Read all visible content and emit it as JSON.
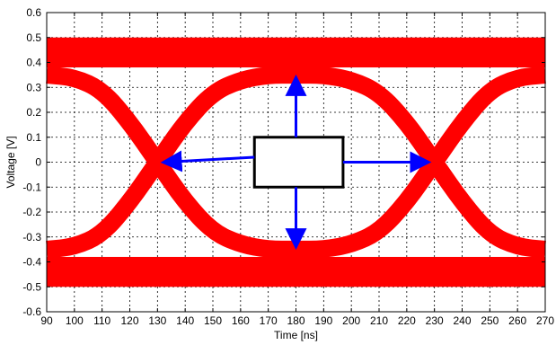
{
  "chart_data": {
    "type": "line",
    "title": "",
    "xlabel": "Time [ns]",
    "ylabel": "Voltage [V]",
    "xlim": [
      90,
      270
    ],
    "ylim": [
      -0.6,
      0.6
    ],
    "xticks": [
      90,
      100,
      110,
      120,
      130,
      140,
      150,
      160,
      170,
      180,
      190,
      200,
      210,
      220,
      230,
      240,
      250,
      260,
      270
    ],
    "yticks": [
      -0.6,
      -0.5,
      -0.4,
      -0.3,
      -0.2,
      -0.1,
      0,
      0.1,
      0.2,
      0.3,
      0.4,
      0.5,
      0.6
    ],
    "yticklabels": [
      "-0.6",
      "-0.5",
      "-0.4",
      "-0.3",
      "-0.2",
      "-0.1",
      "0",
      "0.1",
      "0.2",
      "0.3",
      "0.4",
      "0.5",
      "0.6"
    ],
    "grid": true,
    "grid_style": "dashed",
    "eye_diagram": {
      "color": "#ff0000",
      "high_level_band": [
        0.38,
        0.5
      ],
      "low_level_band": [
        -0.5,
        -0.38
      ],
      "crossing_points": [
        {
          "x": 130,
          "y": 0
        },
        {
          "x": 230,
          "y": 0
        }
      ],
      "trace_bundle_width": 0.07,
      "series": [
        {
          "x": [
            90,
            100,
            110,
            120,
            130,
            140,
            150,
            160,
            170,
            180,
            190,
            200,
            210,
            220,
            230,
            240,
            250,
            260,
            270
          ],
          "y": [
            0.35,
            0.34,
            0.29,
            0.16,
            0.0,
            -0.16,
            -0.28,
            -0.33,
            -0.35,
            -0.35,
            -0.35,
            -0.33,
            -0.28,
            -0.16,
            0.0,
            0.16,
            0.29,
            0.34,
            0.35
          ]
        },
        {
          "x": [
            90,
            100,
            110,
            120,
            130,
            140,
            150,
            160,
            170,
            180,
            190,
            200,
            210,
            220,
            230,
            240,
            250,
            260,
            270
          ],
          "y": [
            -0.35,
            -0.34,
            -0.29,
            -0.16,
            0.0,
            0.16,
            0.28,
            0.33,
            0.35,
            0.35,
            0.35,
            0.33,
            0.28,
            0.16,
            0.0,
            -0.16,
            -0.29,
            -0.34,
            -0.35
          ]
        }
      ]
    },
    "annotations": {
      "eye_mask_box": {
        "x": [
          165,
          197
        ],
        "y": [
          -0.1,
          0.1
        ],
        "color": "#000000"
      },
      "arrows": [
        {
          "from": [
            180,
            0.1
          ],
          "to": [
            180,
            0.33
          ],
          "color": "#0000ff"
        },
        {
          "from": [
            180,
            -0.1
          ],
          "to": [
            180,
            -0.33
          ],
          "color": "#0000ff"
        },
        {
          "from": [
            165,
            0.02
          ],
          "to": [
            133,
            0.0
          ],
          "color": "#0000ff"
        },
        {
          "from": [
            197,
            0.0
          ],
          "to": [
            227,
            0.0
          ],
          "color": "#0000ff"
        }
      ]
    }
  }
}
